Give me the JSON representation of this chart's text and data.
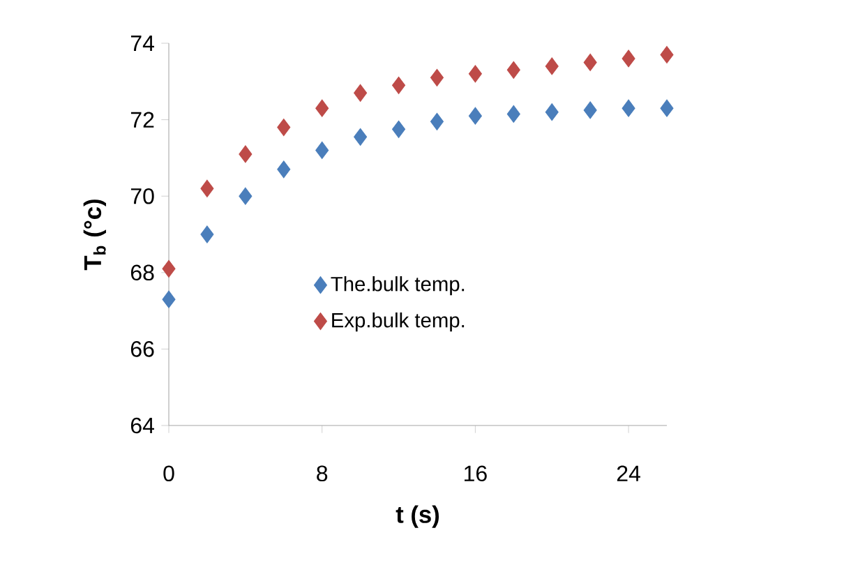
{
  "chart_data": {
    "type": "scatter",
    "xlabel": "t  (s)",
    "ylabel": "T$_{b}$ (°c)",
    "x": [
      0,
      2,
      4,
      6,
      8,
      10,
      12,
      14,
      16,
      18,
      20,
      22,
      24,
      26
    ],
    "series": [
      {
        "name": "The.bulk temp.",
        "color": "#4a7ebb",
        "values": [
          67.3,
          69.0,
          70.0,
          70.7,
          71.2,
          71.55,
          71.75,
          71.95,
          72.1,
          72.15,
          72.2,
          72.25,
          72.3,
          72.3
        ]
      },
      {
        "name": "Exp.bulk temp.",
        "color": "#be4b48",
        "values": [
          68.1,
          70.2,
          71.1,
          71.8,
          72.3,
          72.7,
          72.9,
          73.1,
          73.2,
          73.3,
          73.4,
          73.5,
          73.6,
          73.7
        ]
      }
    ],
    "xlim": [
      0,
      26
    ],
    "ylim": [
      64,
      74
    ],
    "xticks": [
      0,
      8,
      16,
      24
    ],
    "yticks": [
      64,
      66,
      68,
      70,
      72,
      74
    ],
    "grid": false,
    "legend": "center",
    "marker": "diamond"
  }
}
